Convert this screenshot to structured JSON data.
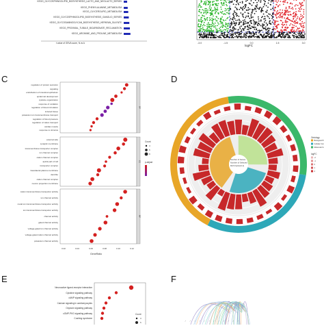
{
  "panels": {
    "A": {
      "labels": [
        "KEGG_GLYCOSPHINGOLIPID_BIOSYNTHESIS_LACTO_AND_NEOLACTO_SERIES",
        "KEGG_PHENYLALANINE_METABOLISM",
        "KEGG_GLYCEROLIPID_METABOLISM",
        "KEGG_GLYCOSPHINGOLIPID_BIOSYNTHESIS_GANGLIO_SERIES",
        "KEGG_GLYCOSAMINOGLYCAN_BIOSYNTHESIS_HEPARAN_SULFATE",
        "KEGG_PROXIMAL_TUBULE_BICARBONATE_RECLAMATION",
        "KEGG_ARGININE_AND_PROLINE_METABOLISM"
      ],
      "xlabel": "t value of GSVA score, N vs A",
      "bar_color": "#1f2ab4"
    },
    "B": {
      "xlabel": "logFC",
      "x_ticks": [
        "-3.0",
        "-1.5",
        "0.0",
        "1.5",
        "3.0"
      ],
      "colors": {
        "down": "#2bb52b",
        "up": "#e0242b",
        "ns": "#111111",
        "threshold": "#1f2ab4"
      }
    },
    "C": {
      "letter": "C",
      "sections": [
        {
          "id": "BP",
          "terms": [
            "regulation of protein secretion",
            "signaling",
            "endothelium of intestinal epithelium",
            "epidermal development",
            "cytokine organization",
            "response of oxidation",
            "regulation of blood circulation",
            "induced tissue",
            "potassium ion transmembrane transport",
            "regulation of blood pressure",
            "regulation of cation transport",
            "cardiac muscle",
            "response to stimulus"
          ]
        },
        {
          "id": "CC",
          "terms": [
            "external side",
            "synaptic membrane",
            "transmembrane transporter complex",
            "ion channel complex",
            "cation channel complex",
            "apical part of cell",
            "transporter complex",
            "basolateral plasma membrane",
            "dendrite",
            "cation channel complex",
            "neuron projection membrane"
          ]
        },
        {
          "id": "MF",
          "terms": [
            "cation transmembrane transporter activity",
            "ion channel activity",
            "metal ion transmembrane transporter activity",
            "ion transmembrane transporter activity",
            "channel activity",
            "gated channel activity",
            "voltage-gated ion channel activity",
            "voltage-gated cation channel activity",
            "potassium channel activity"
          ]
        }
      ],
      "xlabel": "GeneRatio",
      "x_ticks": [
        "0.02",
        "0.04",
        "0.06",
        "0.08",
        "0.10",
        "0.12"
      ],
      "legend": {
        "count_title": "Count",
        "count_values": [
          "4",
          "6",
          "8"
        ],
        "padj_title": "p.adjust"
      },
      "dot_color": "#d4201f",
      "colors": {
        "low": "#d4201f",
        "high": "#7a1fa6"
      }
    },
    "D": {
      "letter": "D",
      "legend": {
        "category_title": "Ontology",
        "categories": [
          "Biological Process",
          "Cellular Component",
          "Molecular Function"
        ],
        "logfc_title": "logFC",
        "logfc_values": [
          "-2",
          "-1",
          "0",
          "1",
          "2"
        ],
        "inner_labels": [
          "Number of Genes",
          "Number of Selected",
          "Rich Factor(0-1)"
        ],
        "segment_labels": [
          "BP",
          "CC",
          "MF"
        ]
      },
      "colors": {
        "bp": "#e8a628",
        "cc": "#2ea8b8",
        "mf": "#3bb86a",
        "bar": "#c7282a",
        "rich_light": "#b8e08a",
        "rich_dark": "#2ea8b8"
      }
    },
    "E": {
      "letter": "E",
      "terms": [
        "Neuroactive ligand-receptor interaction",
        "Cytokine signaling pathway",
        "cAMP signaling pathway",
        "Calcium signaling in cardiomyocytes",
        "Oxytocin signaling pathway",
        "cGMP-PKG signaling pathway",
        "Cushing syndrome"
      ],
      "legend": {
        "count_title": "Count",
        "count_values": [
          "3",
          "6"
        ]
      },
      "dot_color": "#d4201f"
    },
    "F": {
      "letter": "F"
    }
  }
}
